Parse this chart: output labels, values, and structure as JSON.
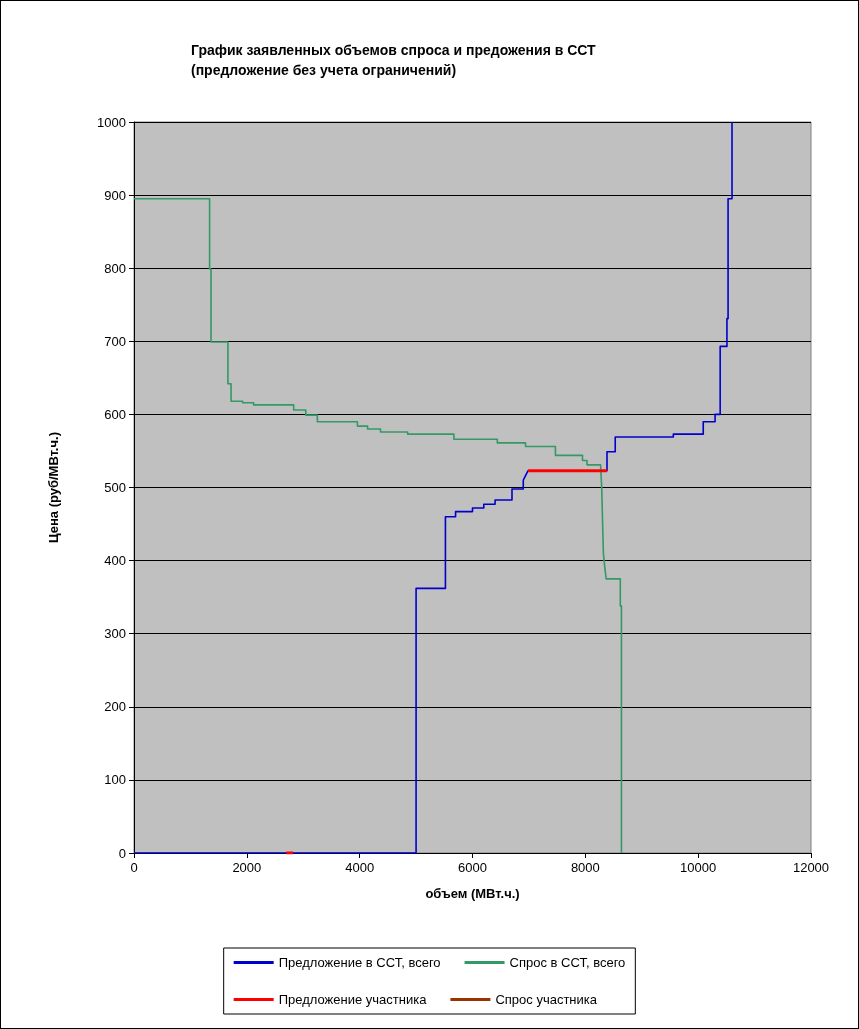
{
  "chart_data": {
    "type": "line",
    "title": "График заявленных объемов спроса и предожения в ССТ\n(предложение без учета ограничений)",
    "xlabel": "объем (МВт.ч.)",
    "ylabel": "Цена (руб/МВт.ч.)",
    "xlim": [
      0,
      12000
    ],
    "xticks": [
      0,
      2000,
      4000,
      6000,
      8000,
      10000,
      12000
    ],
    "ylim": [
      0,
      1000
    ],
    "yticks": [
      0,
      100,
      200,
      300,
      400,
      500,
      600,
      700,
      800,
      900,
      1000
    ],
    "grid": "y",
    "legend": "bottom",
    "marker": "none",
    "line_style": "solid",
    "series": [
      {
        "name": "Предложение в ССТ, всего",
        "color": "#0000cc",
        "x": [
          0,
          5000,
          5000,
          5520,
          5520,
          5700,
          5700,
          6000,
          6000,
          6200,
          6200,
          6400,
          6400,
          6700,
          6700,
          6900,
          6900,
          6985,
          8384,
          8384,
          8530,
          8530,
          9560,
          9560,
          10090,
          10090,
          10300,
          10300,
          10390,
          10390,
          10510,
          10510,
          10530,
          10530,
          10600,
          10600
        ],
        "values": [
          0,
          0,
          362,
          362,
          460,
          460,
          467,
          467,
          472,
          472,
          477,
          477,
          483,
          483,
          498,
          498,
          510,
          523,
          523,
          549,
          549,
          569,
          569,
          573,
          573,
          590,
          590,
          600,
          600,
          693,
          693,
          731,
          731,
          895,
          895,
          1000
        ]
      },
      {
        "name": "Спрос в ССТ, всего",
        "color": "#339966",
        "x": [
          0,
          1340,
          1340,
          1365,
          1365,
          1665,
          1665,
          1720,
          1720,
          1925,
          1925,
          2120,
          2120,
          2830,
          2830,
          3045,
          3045,
          3250,
          3250,
          3960,
          3960,
          4140,
          4140,
          4370,
          4370,
          4850,
          4850,
          5670,
          5670,
          6440,
          6440,
          6940,
          6940,
          7470,
          7470,
          7950,
          7950,
          8030,
          8030,
          8270,
          8290,
          8320,
          8350,
          8370,
          8620,
          8620,
          8640,
          8640
        ],
        "values": [
          895,
          895,
          799,
          799,
          699,
          699,
          642,
          642,
          618,
          618,
          616,
          616,
          613,
          613,
          606,
          606,
          599,
          599,
          590,
          590,
          584,
          584,
          580,
          580,
          576,
          576,
          573,
          573,
          566,
          566,
          561,
          561,
          556,
          556,
          544,
          544,
          537,
          537,
          531,
          531,
          500,
          410,
          387,
          375,
          375,
          338,
          338,
          0
        ]
      },
      {
        "name": "Предложение участника",
        "color": "#ff0000",
        "x": [
          2700,
          2820,
          null,
          6985,
          8384
        ],
        "values": [
          0,
          0,
          null,
          523,
          523
        ]
      },
      {
        "name": "Спрос участника",
        "color": "#993300"
      }
    ]
  }
}
